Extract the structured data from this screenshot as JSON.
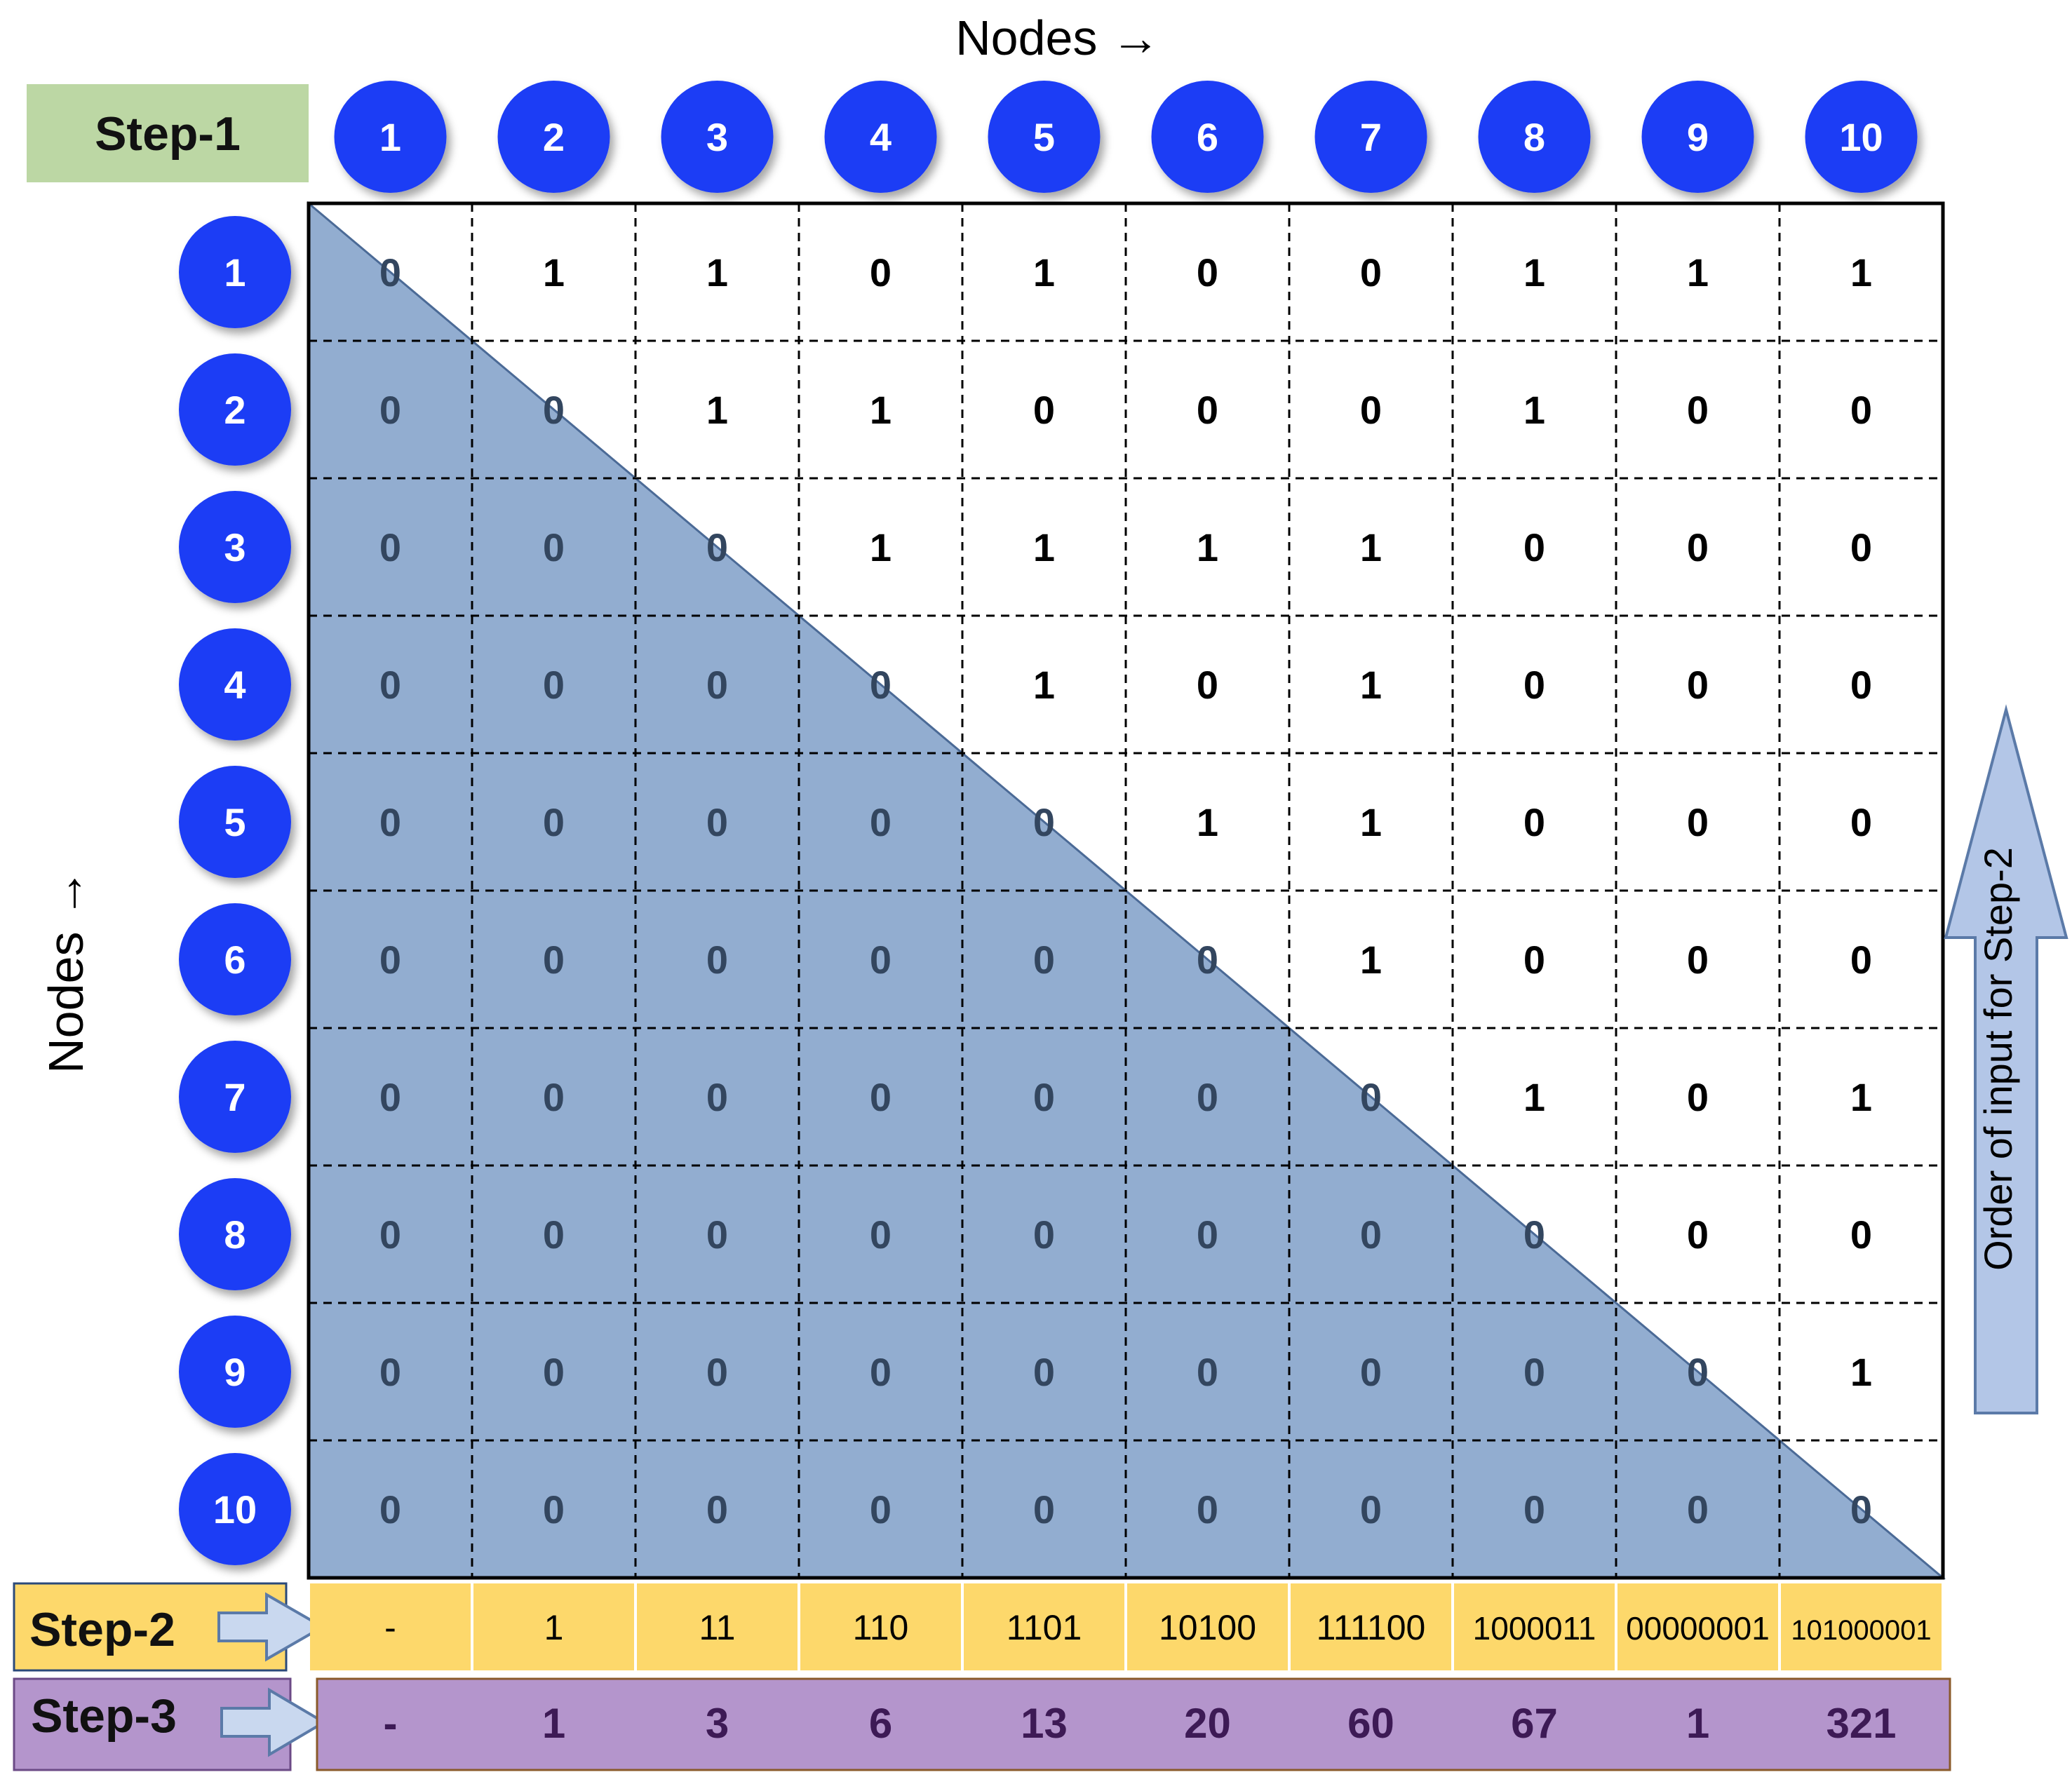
{
  "axis_top_label": "Nodes →",
  "axis_left_label": "Nodes →",
  "step1_label": "Step-1",
  "step2_label": "Step-2",
  "step3_label": "Step-3",
  "order_label": "Order of input for Step-2",
  "nodes": [
    "1",
    "2",
    "3",
    "4",
    "5",
    "6",
    "7",
    "8",
    "9",
    "10"
  ],
  "matrix": [
    [
      "0",
      "1",
      "1",
      "0",
      "1",
      "0",
      "0",
      "1",
      "1",
      "1"
    ],
    [
      "0",
      "0",
      "1",
      "1",
      "0",
      "0",
      "0",
      "1",
      "0",
      "0"
    ],
    [
      "0",
      "0",
      "0",
      "1",
      "1",
      "1",
      "1",
      "0",
      "0",
      "0"
    ],
    [
      "0",
      "0",
      "0",
      "0",
      "1",
      "0",
      "1",
      "0",
      "0",
      "0"
    ],
    [
      "0",
      "0",
      "0",
      "0",
      "0",
      "1",
      "1",
      "0",
      "0",
      "0"
    ],
    [
      "0",
      "0",
      "0",
      "0",
      "0",
      "0",
      "1",
      "0",
      "0",
      "0"
    ],
    [
      "0",
      "0",
      "0",
      "0",
      "0",
      "0",
      "0",
      "1",
      "0",
      "1"
    ],
    [
      "0",
      "0",
      "0",
      "0",
      "0",
      "0",
      "0",
      "0",
      "0",
      "0"
    ],
    [
      "0",
      "0",
      "0",
      "0",
      "0",
      "0",
      "0",
      "0",
      "0",
      "1"
    ],
    [
      "0",
      "0",
      "0",
      "0",
      "0",
      "0",
      "0",
      "0",
      "0",
      "0"
    ]
  ],
  "step2_values": [
    "-",
    "1",
    "11",
    "110",
    "1101",
    "10100",
    "111100",
    "1000011",
    "00000001",
    "101000001"
  ],
  "step3_values": [
    "-",
    "1",
    "3",
    "6",
    "13",
    "20",
    "60",
    "67",
    "1",
    "321"
  ],
  "colors": {
    "node_circle": "#1e3cf5",
    "triangle": "#7f9fc8",
    "step1_bg": "#bcd7a4",
    "step2_bg": "#fdd86b",
    "step3_bg": "#b495cc",
    "arrow_fill": "#b3c6e7",
    "arrow_stroke": "#5b7aa8"
  }
}
